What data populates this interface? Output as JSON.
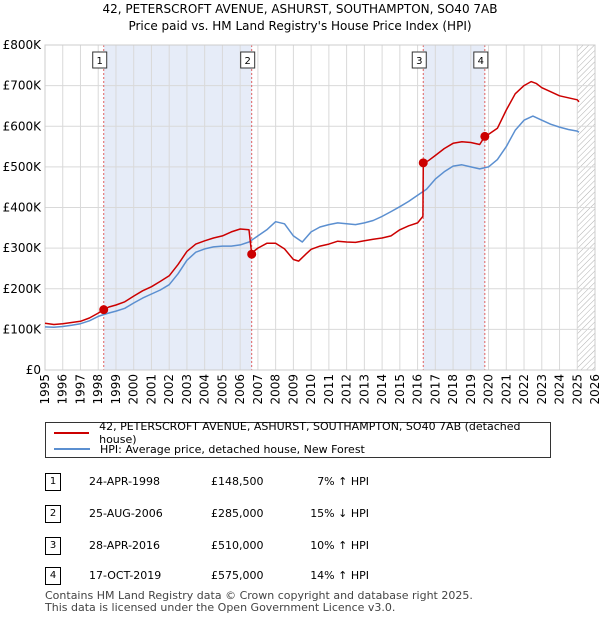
{
  "chart_data": {
    "type": "line",
    "title": "42, PETERSCROFT AVENUE, ASHURST, SOUTHAMPTON, SO40 7AB",
    "subtitle": "Price paid vs. HM Land Registry's House Price Index (HPI)",
    "xlabel": "",
    "ylabel": "",
    "xlim": [
      1995,
      2026
    ],
    "ylim": [
      0,
      800000
    ],
    "x_ticks": [
      "1995",
      "1996",
      "1997",
      "1998",
      "1999",
      "2000",
      "2001",
      "2002",
      "2003",
      "2004",
      "2005",
      "2006",
      "2007",
      "2008",
      "2009",
      "2010",
      "2011",
      "2012",
      "2013",
      "2014",
      "2015",
      "2016",
      "2017",
      "2018",
      "2019",
      "2020",
      "2021",
      "2022",
      "2023",
      "2024",
      "2025",
      "2026"
    ],
    "y_ticks": [
      {
        "value": 0,
        "label": "£0"
      },
      {
        "value": 100000,
        "label": "£100K"
      },
      {
        "value": 200000,
        "label": "£200K"
      },
      {
        "value": 300000,
        "label": "£300K"
      },
      {
        "value": 400000,
        "label": "£400K"
      },
      {
        "value": 500000,
        "label": "£500K"
      },
      {
        "value": 600000,
        "label": "£600K"
      },
      {
        "value": 700000,
        "label": "£700K"
      },
      {
        "value": 800000,
        "label": "£800K"
      }
    ],
    "grid": true,
    "shaded_ranges": [
      [
        1998.31,
        2006.65
      ],
      [
        2016.32,
        2019.79
      ]
    ],
    "hatched_after": 2025.0,
    "series": [
      {
        "name": "42, PETERSCROFT AVENUE, ASHURST, SOUTHAMPTON, SO40 7AB (detached house)",
        "color": "#cc0000",
        "x": [
          1995.0,
          1995.5,
          1996.0,
          1996.5,
          1997.0,
          1997.5,
          1998.0,
          1998.31,
          1998.6,
          1999.0,
          1999.5,
          2000.0,
          2000.5,
          2001.0,
          2001.5,
          2002.0,
          2002.5,
          2003.0,
          2003.5,
          2004.0,
          2004.5,
          2005.0,
          2005.5,
          2006.0,
          2006.5,
          2006.65,
          2006.7,
          2007.0,
          2007.5,
          2008.0,
          2008.5,
          2009.0,
          2009.3,
          2009.7,
          2010.0,
          2010.5,
          2011.0,
          2011.5,
          2012.0,
          2012.5,
          2013.0,
          2013.5,
          2014.0,
          2014.5,
          2015.0,
          2015.5,
          2016.0,
          2016.3,
          2016.32,
          2016.6,
          2017.0,
          2017.5,
          2018.0,
          2018.5,
          2019.0,
          2019.5,
          2019.79,
          2020.0,
          2020.5,
          2021.0,
          2021.5,
          2022.0,
          2022.4,
          2022.7,
          2023.0,
          2023.5,
          2024.0,
          2024.5,
          2025.0,
          2025.1
        ],
        "values": [
          115000,
          112000,
          114000,
          117000,
          120000,
          128000,
          140000,
          148500,
          155000,
          160000,
          168000,
          182000,
          195000,
          205000,
          218000,
          232000,
          260000,
          292000,
          310000,
          318000,
          325000,
          330000,
          340000,
          347000,
          345000,
          285000,
          290000,
          300000,
          312000,
          312000,
          298000,
          272000,
          268000,
          285000,
          297000,
          305000,
          310000,
          317000,
          315000,
          314000,
          318000,
          322000,
          325000,
          330000,
          345000,
          355000,
          362000,
          378000,
          510000,
          515000,
          528000,
          545000,
          558000,
          562000,
          560000,
          555000,
          575000,
          580000,
          595000,
          640000,
          680000,
          700000,
          710000,
          705000,
          695000,
          685000,
          675000,
          670000,
          665000,
          660000
        ]
      },
      {
        "name": "HPI: Average price, detached house, New Forest",
        "color": "#5b8fd0",
        "x": [
          1995.0,
          1995.5,
          1996.0,
          1996.5,
          1997.0,
          1997.5,
          1998.0,
          1998.5,
          1999.0,
          1999.5,
          2000.0,
          2000.5,
          2001.0,
          2001.5,
          2002.0,
          2002.5,
          2003.0,
          2003.5,
          2004.0,
          2004.5,
          2005.0,
          2005.5,
          2006.0,
          2006.5,
          2007.0,
          2007.5,
          2008.0,
          2008.5,
          2009.0,
          2009.5,
          2010.0,
          2010.5,
          2011.0,
          2011.5,
          2012.0,
          2012.5,
          2013.0,
          2013.5,
          2014.0,
          2014.5,
          2015.0,
          2015.5,
          2016.0,
          2016.5,
          2017.0,
          2017.5,
          2018.0,
          2018.5,
          2019.0,
          2019.5,
          2020.0,
          2020.5,
          2021.0,
          2021.5,
          2022.0,
          2022.5,
          2023.0,
          2023.5,
          2024.0,
          2024.5,
          2025.0,
          2025.1
        ],
        "values": [
          106000,
          105000,
          107000,
          110000,
          114000,
          121000,
          132000,
          139000,
          145000,
          152000,
          165000,
          177000,
          187000,
          197000,
          210000,
          237000,
          270000,
          290000,
          298000,
          303000,
          305000,
          305000,
          308000,
          315000,
          330000,
          345000,
          365000,
          360000,
          330000,
          315000,
          340000,
          352000,
          358000,
          362000,
          360000,
          358000,
          362000,
          368000,
          378000,
          390000,
          402000,
          415000,
          430000,
          445000,
          470000,
          488000,
          502000,
          505000,
          500000,
          495000,
          500000,
          518000,
          550000,
          590000,
          615000,
          625000,
          615000,
          605000,
          598000,
          592000,
          588000,
          585000
        ]
      }
    ],
    "sale_markers": [
      {
        "label": "1",
        "x": 1998.31,
        "y": 148500
      },
      {
        "label": "2",
        "x": 2006.65,
        "y": 285000
      },
      {
        "label": "3",
        "x": 2016.32,
        "y": 510000
      },
      {
        "label": "4",
        "x": 2019.79,
        "y": 575000
      }
    ]
  },
  "legend": {
    "property_label": "42, PETERSCROFT AVENUE, ASHURST, SOUTHAMPTON, SO40 7AB (detached house)",
    "hpi_label": "HPI: Average price, detached house, New Forest",
    "property_color": "#cc0000",
    "hpi_color": "#5b8fd0"
  },
  "sales": [
    {
      "num": "1",
      "date": "24-APR-1998",
      "price": "£148,500",
      "hpi": "7% ↑ HPI"
    },
    {
      "num": "2",
      "date": "25-AUG-2006",
      "price": "£285,000",
      "hpi": "15% ↓ HPI"
    },
    {
      "num": "3",
      "date": "28-APR-2016",
      "price": "£510,000",
      "hpi": "10% ↑ HPI"
    },
    {
      "num": "4",
      "date": "17-OCT-2019",
      "price": "£575,000",
      "hpi": "14% ↑ HPI"
    }
  ],
  "footer": {
    "line1": "Contains HM Land Registry data © Crown copyright and database right 2025.",
    "line2": "This data is licensed under the Open Government Licence v3.0."
  }
}
